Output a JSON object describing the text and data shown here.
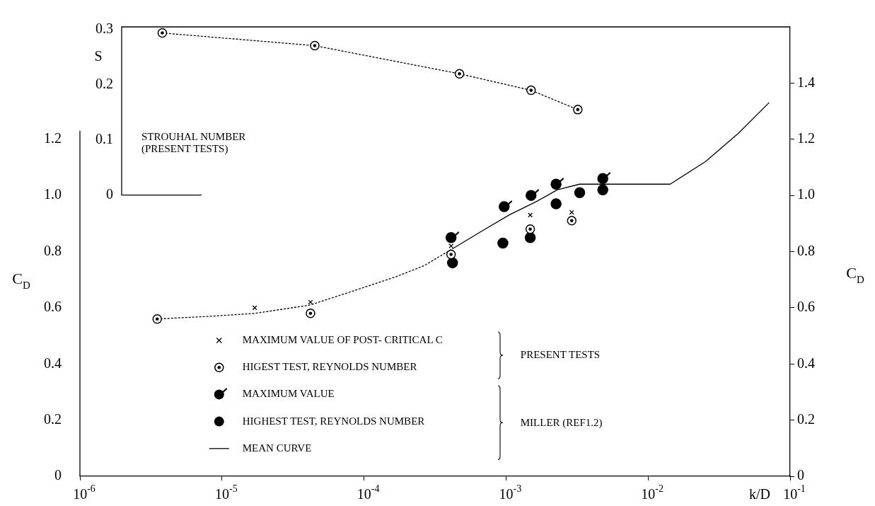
{
  "chart_data": {
    "type": "scatter",
    "xlabel": "k/D",
    "ylabel": "C$_{D}$",
    "y2label": "C$_{D}$",
    "y3label": "S",
    "log": "x",
    "xlim": [
      1e-06,
      0.1
    ],
    "xticks": [
      {
        "value": 1e-06,
        "label": "10$^{-6}$"
      },
      {
        "value": 1e-05,
        "label": "10$^{-5}$"
      },
      {
        "value": 0.0001,
        "label": "10$^{-4}$"
      },
      {
        "value": 0.001,
        "label": "10$^{-3}$"
      },
      {
        "value": 0.01,
        "label": "10$^{-2}$"
      },
      {
        "value": 0.1,
        "label": "10$^{-1}$"
      }
    ],
    "ylim": [
      0,
      1.6
    ],
    "yticks": [
      0,
      0.2,
      0.4,
      0.6,
      0.8,
      {
        "value": 1,
        "label": "1.0"
      },
      1.2
    ],
    "y2lim": [
      0,
      1.6
    ],
    "y2ticks": [
      0,
      0.2,
      0.4,
      0.6,
      0.8,
      {
        "value": 1,
        "label": "1.0"
      },
      1.2,
      1.4
    ],
    "y3lim": [
      -0.51,
      0.305
    ],
    "y3ticks": [
      0,
      0.1,
      0.2,
      0.3
    ],
    "grid": false,
    "legend": "bottom",
    "annotations": [
      "STROUHAL NUMBER\n(PRESENT TESTS)",
      "PRESENT TESTS",
      "MILLER (REF1.2)"
    ],
    "series": [
      {
        "name": "MAXIMUM VALUE OF POST- CRITICAL C",
        "marker": "cross",
        "color": "#000000",
        "x": [
          1.7e-05,
          4.2e-05,
          0.00041,
          0.00148,
          0.0029
        ],
        "values": [
          0.6,
          0.62,
          0.82,
          0.93,
          0.94
        ]
      },
      {
        "name": "HIGEST TEST, REYNOLDS NUMBER",
        "marker": "circle",
        "color": "#000000",
        "x": [
          3.5e-06,
          4.2e-05,
          0.00041,
          0.00148,
          0.0029
        ],
        "values": [
          0.56,
          0.58,
          0.79,
          0.88,
          0.91
        ]
      },
      {
        "name": "MAXIMUM VALUE",
        "marker": "circle",
        "color": "#000000",
        "x": [
          0.00041,
          0.00097,
          0.0015,
          0.00225,
          0.0048
        ],
        "values": [
          0.85,
          0.96,
          1.0,
          1.04,
          1.06
        ]
      },
      {
        "name": "HIGHEST TEST, REYNOLDS NUMBER",
        "marker": "circle",
        "color": "#000000",
        "x": [
          0.00042,
          0.00095,
          0.00148,
          0.00225,
          0.0033,
          0.0048
        ],
        "values": [
          0.76,
          0.83,
          0.85,
          0.97,
          1.01,
          1.02
        ]
      },
      {
        "name": "MEAN CURVE",
        "type": "line",
        "marker": "none",
        "line_style": "solid",
        "color": "#000000",
        "x": [
          0.00042,
          0.00066,
          0.00105,
          0.00166,
          0.0023,
          0.0033,
          0.0046,
          0.0143,
          0.0253,
          0.043,
          0.071
        ],
        "values": [
          0.81,
          0.87,
          0.93,
          0.98,
          1.02,
          1.04,
          1.04,
          1.04,
          1.12,
          1.22,
          1.33
        ]
      },
      {
        "type": "line",
        "marker": "none",
        "line_style": "dotted",
        "color": "#000000",
        "x": [
          3.5e-06,
          8.5e-06,
          1.7e-05,
          4.2e-05,
          8.4e-05,
          0.000167,
          0.000265,
          0.00042
        ],
        "values": [
          0.56,
          0.57,
          0.58,
          0.61,
          0.66,
          0.71,
          0.75,
          0.81
        ]
      },
      {
        "type": "line",
        "axis": "y3",
        "marker": "circle",
        "line_style": "dotted",
        "color": "#000000",
        "x": [
          3.8e-06,
          4.5e-05,
          0.00047,
          0.0015,
          0.0032
        ],
        "values": [
          0.294,
          0.271,
          0.22,
          0.19,
          0.155
        ]
      }
    ]
  }
}
